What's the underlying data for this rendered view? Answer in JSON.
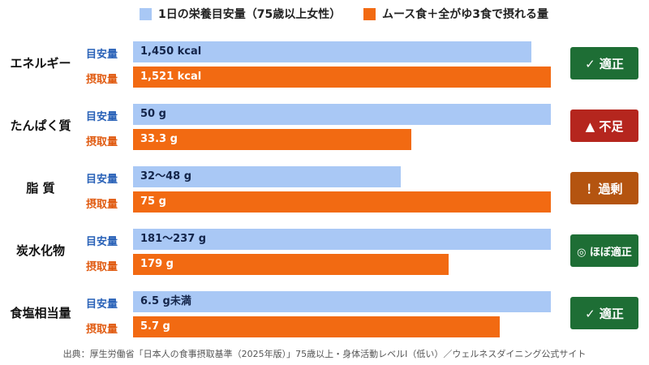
{
  "chart_data": {
    "type": "bar",
    "orientation": "horizontal",
    "legend": [
      {
        "label": "1日の栄養目安量（75歳以上女性）",
        "color": "#a9c8f5"
      },
      {
        "label": "ムース食＋全がゆ3食で摂れる量",
        "color": "#f26a12"
      }
    ],
    "series_labels": {
      "target": "目安量",
      "intake": "摂取量"
    },
    "categories": [
      {
        "name": "エネルギー",
        "target": {
          "label": "1,450 kcal",
          "value": 1450
        },
        "intake": {
          "label": "1,521 kcal",
          "value": 1521
        },
        "status": {
          "label": "✓ 適正",
          "color": "#1e6e35"
        }
      },
      {
        "name": "たんぱく質",
        "target": {
          "label": "50 g",
          "value": 50
        },
        "intake": {
          "label": "33.3 g",
          "value": 33.3
        },
        "status": {
          "label": "▲ 不足",
          "color": "#b5261e"
        }
      },
      {
        "name": "脂 質",
        "target": {
          "label": "32～48 g",
          "value": 48
        },
        "intake": {
          "label": "75 g",
          "value": 75
        },
        "status": {
          "label": "！過剰",
          "color": "#b45410"
        }
      },
      {
        "name": "炭水化物",
        "target": {
          "label": "181～237 g",
          "value": 237
        },
        "intake": {
          "label": "179 g",
          "value": 179
        },
        "status": {
          "label": "◎ ほぼ適正",
          "color": "#1e6e35"
        }
      },
      {
        "name": "食塩相当量",
        "target": {
          "label": "6.5 g未満",
          "value": 6.5
        },
        "intake": {
          "label": "5.7 g",
          "value": 5.7
        },
        "status": {
          "label": "✓ 適正",
          "color": "#1e6e35"
        }
      }
    ],
    "source": "出典：厚生労働省「日本人の食事摂取基準（2025年版）」75歳以上・身体活動レベルⅠ（低い）／ウェルネスダイニング公式サイト"
  }
}
